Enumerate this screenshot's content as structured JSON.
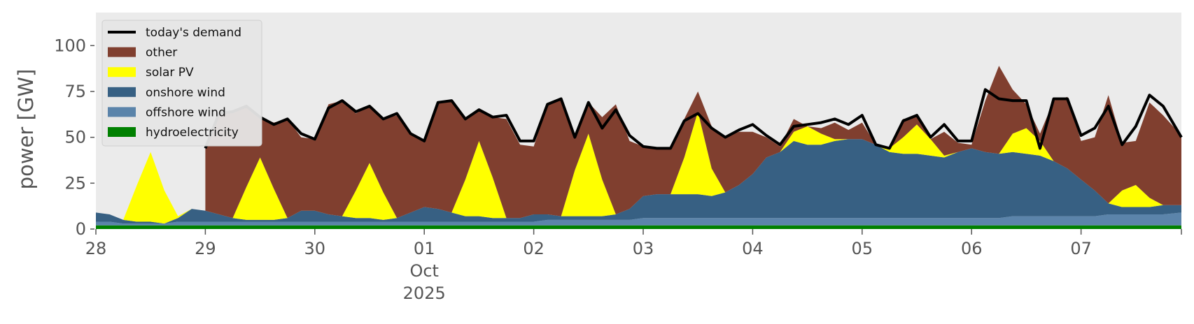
{
  "chart_data": {
    "type": "area",
    "stacked": true,
    "title": "",
    "xlabel": "",
    "ylabel": "power [GW]",
    "ylim": [
      0,
      118
    ],
    "yticks": [
      0,
      25,
      50,
      75,
      100
    ],
    "xlim": [
      "2025-09-28T00:00",
      "2025-10-07T22:00"
    ],
    "xticks": [
      {
        "date": "2025-09-28",
        "label": "28"
      },
      {
        "date": "2025-09-29",
        "label": "29"
      },
      {
        "date": "2025-09-30",
        "label": "30"
      },
      {
        "date": "2025-10-01",
        "label": "01",
        "sublabel": "Oct",
        "sublabel2": "2025"
      },
      {
        "date": "2025-10-02",
        "label": "02"
      },
      {
        "date": "2025-10-03",
        "label": "03"
      },
      {
        "date": "2025-10-04",
        "label": "04"
      },
      {
        "date": "2025-10-05",
        "label": "05"
      },
      {
        "date": "2025-10-06",
        "label": "06"
      },
      {
        "date": "2025-10-07",
        "label": "07"
      }
    ],
    "grid": false,
    "legend_position": "top-left",
    "background": "#ebebeb",
    "x": [
      "2025-09-28T00:00",
      "2025-09-28T03:00",
      "2025-09-28T06:00",
      "2025-09-28T09:00",
      "2025-09-28T12:00",
      "2025-09-28T15:00",
      "2025-09-28T18:00",
      "2025-09-28T21:00",
      "2025-09-29T00:00",
      "2025-09-29T03:00",
      "2025-09-29T06:00",
      "2025-09-29T09:00",
      "2025-09-29T12:00",
      "2025-09-29T15:00",
      "2025-09-29T18:00",
      "2025-09-29T21:00",
      "2025-09-30T00:00",
      "2025-09-30T03:00",
      "2025-09-30T06:00",
      "2025-09-30T09:00",
      "2025-09-30T12:00",
      "2025-09-30T15:00",
      "2025-09-30T18:00",
      "2025-09-30T21:00",
      "2025-10-01T00:00",
      "2025-10-01T03:00",
      "2025-10-01T06:00",
      "2025-10-01T09:00",
      "2025-10-01T12:00",
      "2025-10-01T15:00",
      "2025-10-01T18:00",
      "2025-10-01T21:00",
      "2025-10-02T00:00",
      "2025-10-02T03:00",
      "2025-10-02T06:00",
      "2025-10-02T09:00",
      "2025-10-02T12:00",
      "2025-10-02T15:00",
      "2025-10-02T18:00",
      "2025-10-02T21:00",
      "2025-10-03T00:00",
      "2025-10-03T03:00",
      "2025-10-03T06:00",
      "2025-10-03T09:00",
      "2025-10-03T12:00",
      "2025-10-03T15:00",
      "2025-10-03T18:00",
      "2025-10-03T21:00",
      "2025-10-04T00:00",
      "2025-10-04T03:00",
      "2025-10-04T06:00",
      "2025-10-04T09:00",
      "2025-10-04T12:00",
      "2025-10-04T15:00",
      "2025-10-04T18:00",
      "2025-10-04T21:00",
      "2025-10-05T00:00",
      "2025-10-05T03:00",
      "2025-10-05T06:00",
      "2025-10-05T09:00",
      "2025-10-05T12:00",
      "2025-10-05T15:00",
      "2025-10-05T18:00",
      "2025-10-05T21:00",
      "2025-10-06T00:00",
      "2025-10-06T03:00",
      "2025-10-06T06:00",
      "2025-10-06T09:00",
      "2025-10-06T12:00",
      "2025-10-06T15:00",
      "2025-10-06T18:00",
      "2025-10-06T21:00",
      "2025-10-07T00:00",
      "2025-10-07T03:00",
      "2025-10-07T06:00",
      "2025-10-07T09:00",
      "2025-10-07T12:00",
      "2025-10-07T15:00",
      "2025-10-07T18:00",
      "2025-10-07T22:00"
    ],
    "series": [
      {
        "name": "hydroelectricity",
        "color": "#008000",
        "values": [
          2,
          2,
          2,
          2,
          2,
          2,
          2,
          2,
          2,
          2,
          2,
          2,
          2,
          2,
          2,
          2,
          2,
          2,
          2,
          2,
          2,
          2,
          2,
          2,
          2,
          2,
          2,
          2,
          2,
          2,
          2,
          2,
          2,
          2,
          2,
          2,
          2,
          2,
          2,
          2,
          2,
          2,
          2,
          2,
          2,
          2,
          2,
          2,
          2,
          2,
          2,
          2,
          2,
          2,
          2,
          2,
          2,
          2,
          2,
          2,
          2,
          2,
          2,
          2,
          2,
          2,
          2,
          2,
          2,
          2,
          2,
          2,
          2,
          2,
          2,
          2,
          2,
          2,
          2,
          2
        ]
      },
      {
        "name": "offshore wind",
        "color": "#5b84aa",
        "values": [
          2,
          2,
          1,
          1,
          1,
          1,
          2,
          2,
          2,
          2,
          2,
          2,
          2,
          2,
          2,
          2,
          2,
          2,
          2,
          2,
          2,
          2,
          2,
          2,
          2,
          2,
          2,
          2,
          2,
          2,
          2,
          2,
          2,
          3,
          3,
          3,
          3,
          3,
          3,
          3,
          4,
          4,
          4,
          4,
          4,
          4,
          4,
          4,
          4,
          4,
          4,
          4,
          4,
          4,
          4,
          4,
          4,
          4,
          4,
          4,
          4,
          4,
          4,
          4,
          4,
          4,
          4,
          5,
          5,
          5,
          5,
          5,
          5,
          5,
          6,
          6,
          6,
          6,
          6,
          7
        ]
      },
      {
        "name": "onshore wind",
        "color": "#376083",
        "values": [
          5,
          4,
          2,
          1,
          1,
          0,
          2,
          7,
          6,
          4,
          2,
          1,
          1,
          1,
          2,
          6,
          6,
          4,
          3,
          2,
          2,
          1,
          2,
          5,
          8,
          7,
          5,
          3,
          3,
          2,
          2,
          2,
          4,
          3,
          2,
          2,
          2,
          2,
          3,
          6,
          12,
          13,
          13,
          13,
          13,
          12,
          14,
          18,
          24,
          33,
          36,
          42,
          40,
          40,
          42,
          43,
          43,
          40,
          36,
          35,
          35,
          34,
          33,
          36,
          38,
          36,
          35,
          35,
          34,
          33,
          30,
          26,
          20,
          14,
          6,
          4,
          4,
          4,
          5,
          4
        ]
      },
      {
        "name": "solar PV",
        "color": "#ffff00",
        "values": [
          0,
          0,
          0,
          20,
          38,
          18,
          1,
          0,
          0,
          0,
          0,
          18,
          34,
          17,
          0,
          0,
          0,
          0,
          0,
          15,
          30,
          15,
          0,
          0,
          0,
          0,
          0,
          20,
          41,
          22,
          0,
          0,
          0,
          0,
          0,
          25,
          45,
          20,
          0,
          0,
          0,
          0,
          0,
          20,
          45,
          15,
          0,
          0,
          0,
          0,
          0,
          5,
          10,
          6,
          1,
          0,
          0,
          0,
          2,
          9,
          16,
          9,
          1,
          0,
          0,
          0,
          0,
          10,
          14,
          8,
          0,
          0,
          0,
          0,
          0,
          9,
          12,
          5,
          0,
          0
        ]
      },
      {
        "name": "other",
        "color": "#803f2f",
        "values": [
          null,
          null,
          null,
          null,
          null,
          null,
          null,
          null,
          34,
          55,
          58,
          44,
          22,
          36,
          54,
          40,
          39,
          60,
          63,
          42,
          31,
          40,
          56,
          43,
          36,
          58,
          61,
          33,
          17,
          33,
          54,
          40,
          37,
          60,
          64,
          20,
          17,
          34,
          60,
          37,
          27,
          25,
          25,
          21,
          11,
          23,
          30,
          29,
          23,
          11,
          3,
          7,
          0,
          3,
          9,
          5,
          9,
          0,
          0,
          10,
          4,
          0,
          13,
          5,
          2,
          28,
          48,
          24,
          13,
          4,
          33,
          39,
          21,
          29,
          59,
          26,
          24,
          52,
          49,
          38
        ]
      },
      {
        "name": "today's demand",
        "color": "#000000",
        "kind": "line",
        "values": [
          null,
          null,
          null,
          null,
          null,
          null,
          null,
          null,
          44,
          63,
          64,
          67,
          61,
          57,
          60,
          52,
          49,
          66,
          70,
          64,
          67,
          60,
          63,
          52,
          48,
          69,
          70,
          60,
          65,
          61,
          62,
          48,
          48,
          68,
          71,
          50,
          69,
          55,
          65,
          51,
          45,
          44,
          44,
          59,
          63,
          55,
          50,
          54,
          57,
          51,
          46,
          56,
          57,
          58,
          60,
          57,
          62,
          46,
          44,
          59,
          62,
          50,
          57,
          48,
          48,
          76,
          71,
          70,
          70,
          44,
          71,
          71,
          51,
          55,
          67,
          46,
          56,
          73,
          67,
          50
        ]
      }
    ]
  }
}
